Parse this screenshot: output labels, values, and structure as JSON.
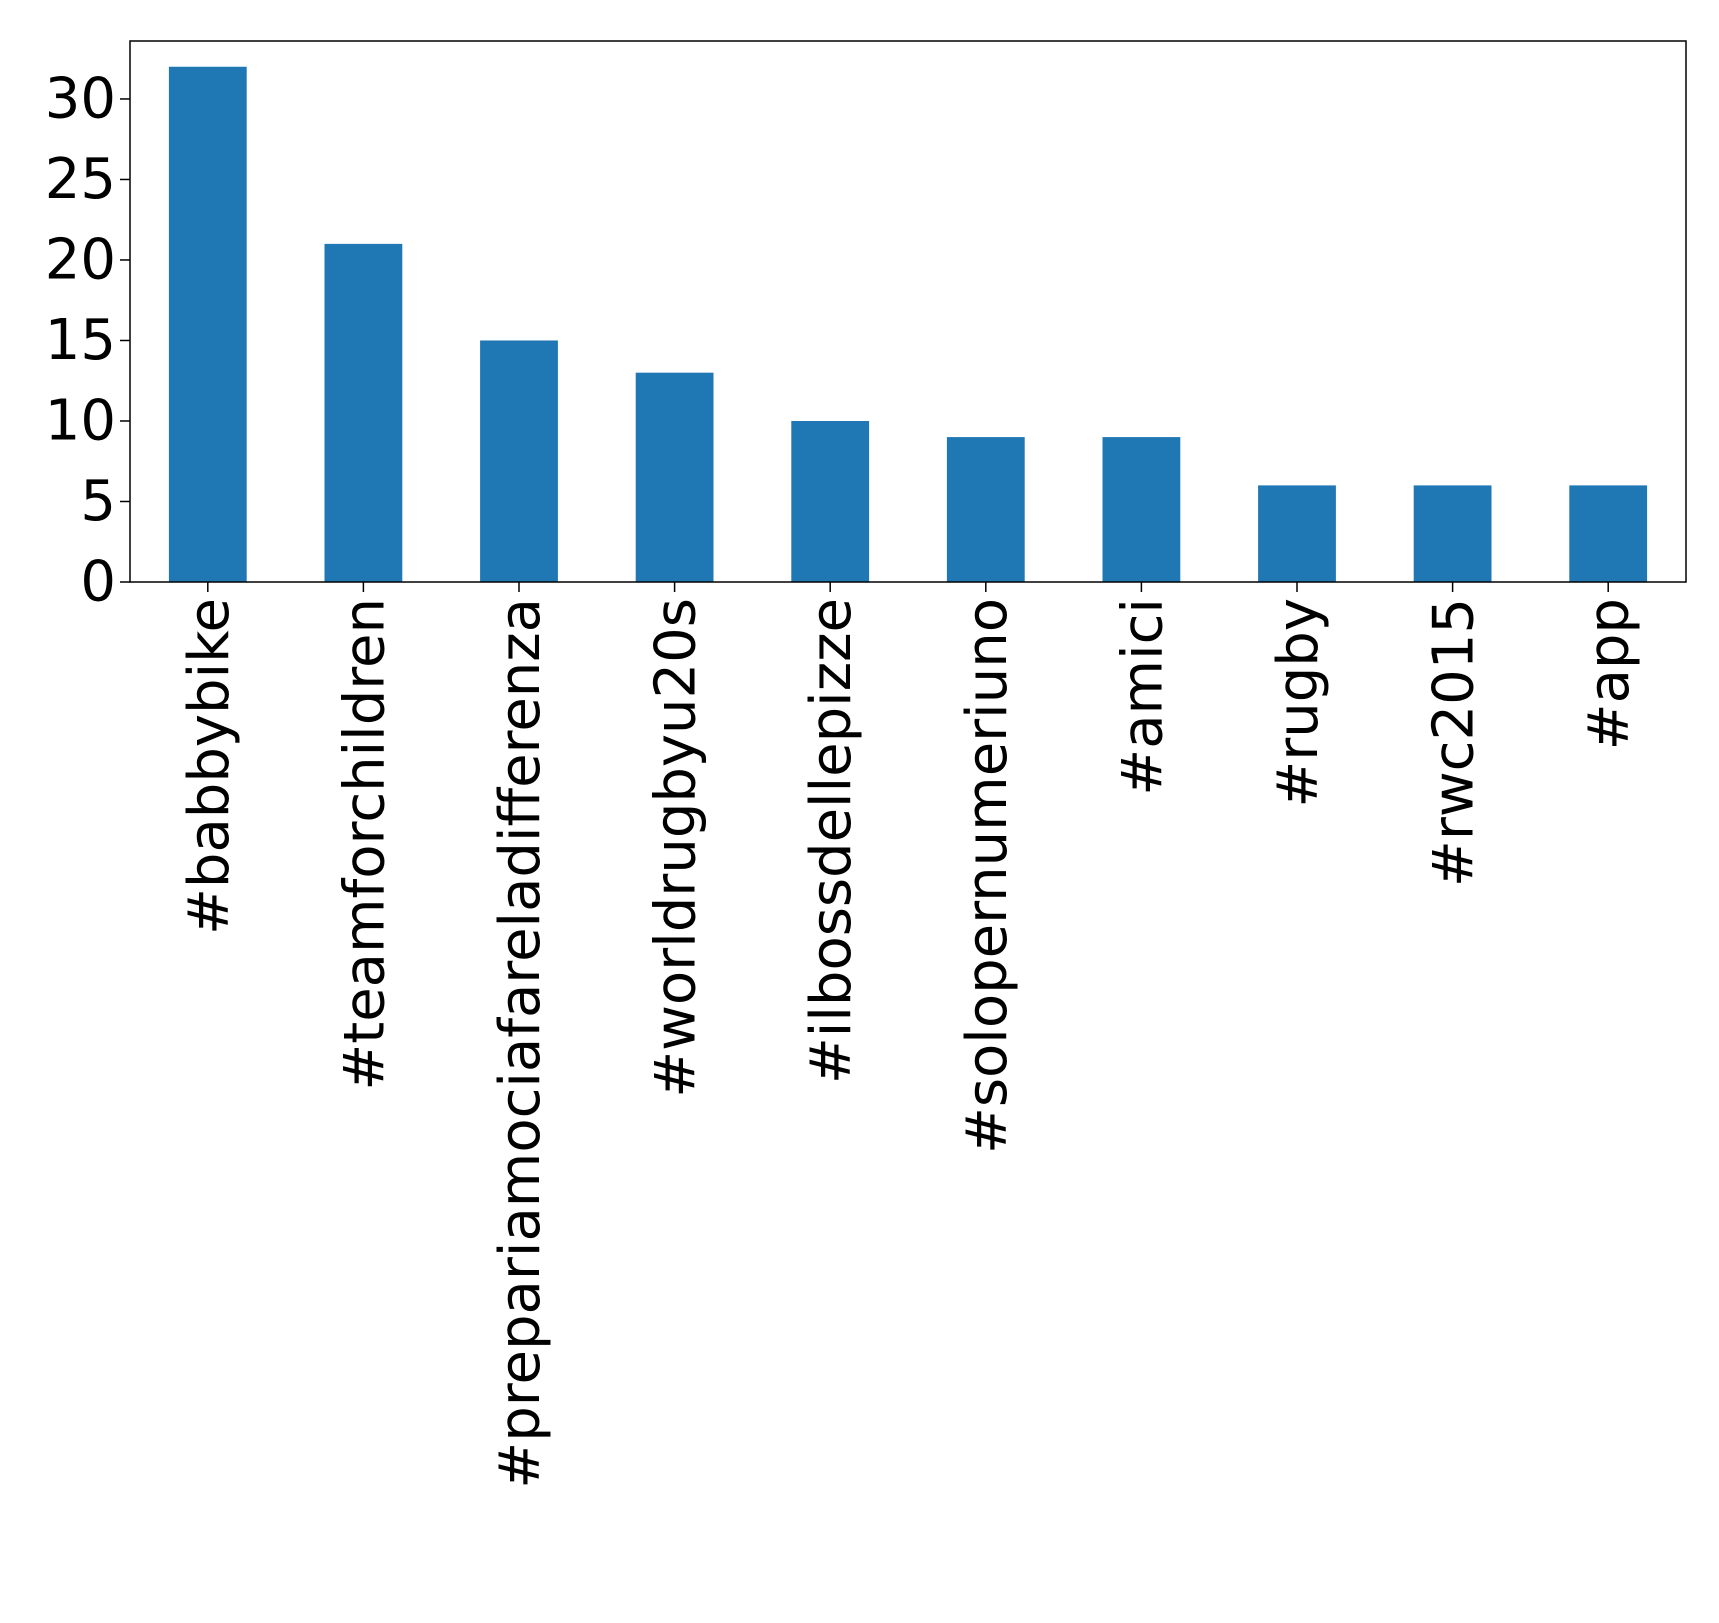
{
  "chart_data": {
    "type": "bar",
    "title": "",
    "xlabel": "",
    "ylabel": "",
    "categories": [
      "#babbybike",
      "#teamforchildren",
      "#prepariamociafareladifferenza",
      "#worldrugbyu20s",
      "#ilbossdellepizze",
      "#solopernumeriuno",
      "#amici",
      "#rugby",
      "#rwc2015",
      "#app"
    ],
    "values": [
      32,
      21,
      15,
      13,
      10,
      9,
      9,
      6,
      6,
      6
    ],
    "ylim": [
      0,
      33.6
    ],
    "yticks": [
      0,
      5,
      10,
      15,
      20,
      25,
      30
    ],
    "ytick_labels": [
      "0",
      "5",
      "10",
      "15",
      "20",
      "25",
      "30"
    ],
    "bar_color": "#1f77b4",
    "grid": false,
    "legend": "none"
  }
}
